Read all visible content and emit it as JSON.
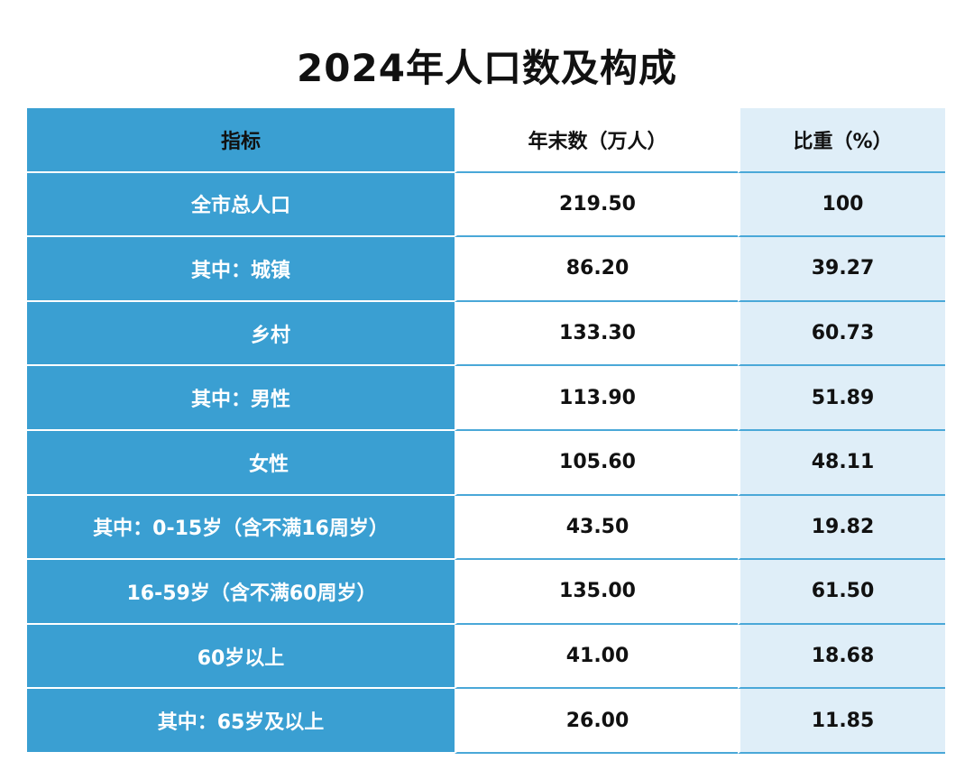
{
  "title": "2024年人口数及构成",
  "table": {
    "headers": [
      "指标",
      "年末数（万人）",
      "比重（%）"
    ],
    "rows": [
      {
        "label": "全市总人口",
        "value": "219.50",
        "share": "100"
      },
      {
        "label": "其中：城镇",
        "value": "86.20",
        "share": "39.27"
      },
      {
        "label": "乡村",
        "value": "133.30",
        "share": "60.73"
      },
      {
        "label": "其中：男性",
        "value": "113.90",
        "share": "51.89"
      },
      {
        "label": "女性",
        "value": "105.60",
        "share": "48.11"
      },
      {
        "label": "其中：0-15岁（含不满16周岁）",
        "value": "43.50",
        "share": "19.82"
      },
      {
        "label": "16-59岁（含不满60周岁）",
        "value": "135.00",
        "share": "61.50"
      },
      {
        "label": "60岁以上",
        "value": "41.00",
        "share": "18.68"
      },
      {
        "label": "其中：65岁及以上",
        "value": "26.00",
        "share": "11.85"
      }
    ]
  },
  "colors": {
    "header_blue": "#3a9fd2",
    "share_bg": "#dfeef8"
  }
}
